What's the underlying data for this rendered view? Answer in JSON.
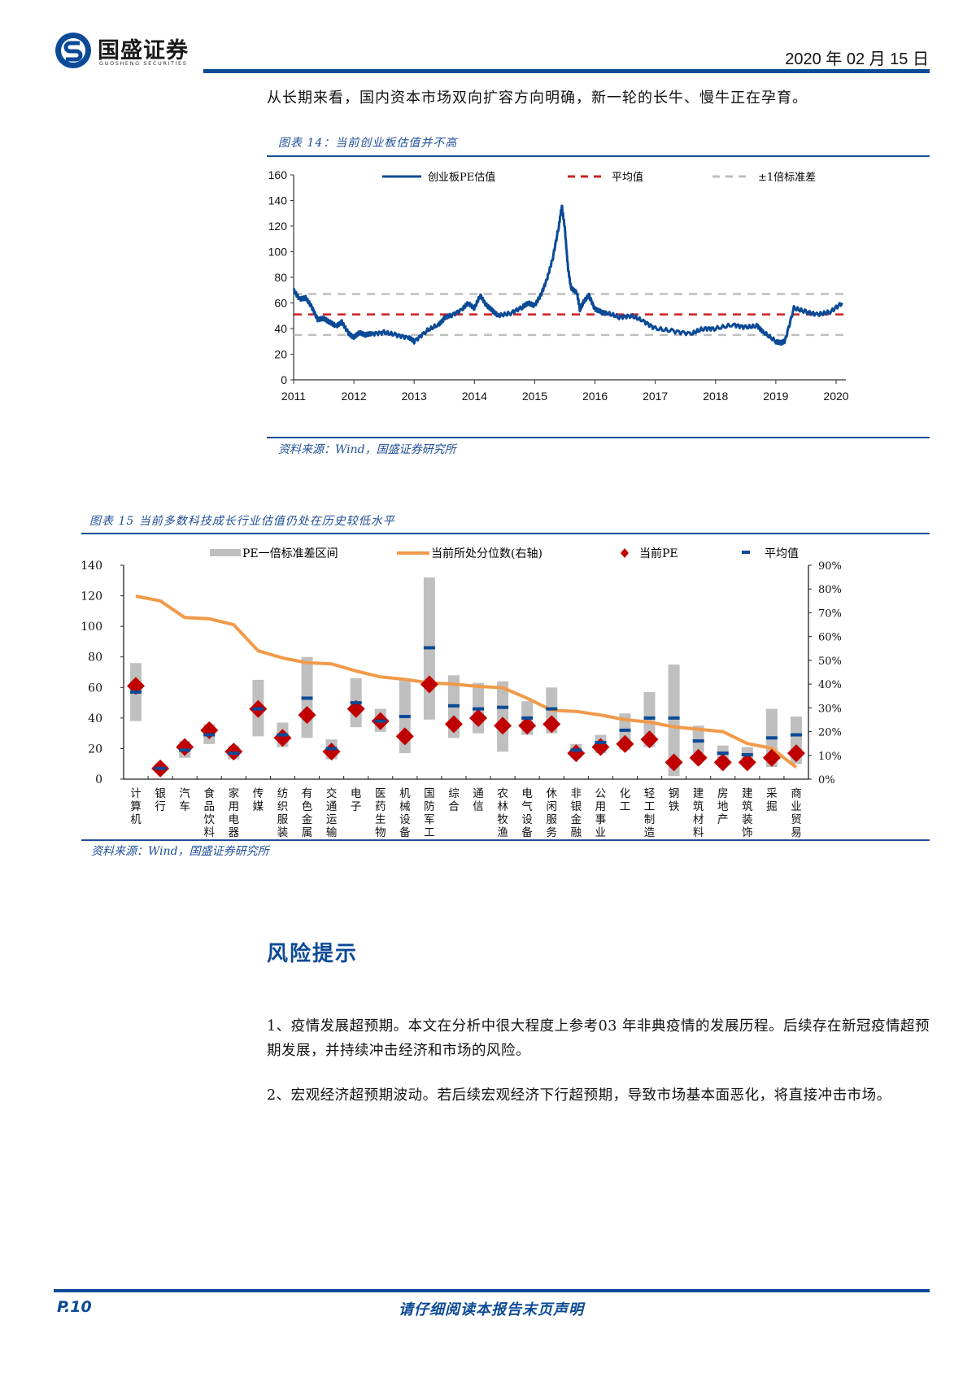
{
  "header": {
    "logo_cn": "国盛证券",
    "logo_en": "GUOSHENG SECURITIES",
    "date": "2020 年 02 月 15 日",
    "brand_color": "#0b4a96"
  },
  "lead_text": "从长期来看，国内资本市场双向扩容方向明确，新一轮的长牛、慢牛正在孕育。",
  "figure14": {
    "title": "图表 14：当前创业板估值并不高",
    "source": "资料来源：Wind，国盛证券研究所"
  },
  "figure15": {
    "title": "图表 15  当前多数科技成长行业估值仍处在历史较低水平",
    "source": "资料来源：Wind，国盛证券研究所"
  },
  "risk": {
    "title": "风险提示",
    "items": [
      "1、疫情发展超预期。本文在分析中很大程度上参考03 年非典疫情的发展历程。后续存在新冠疫情超预期发展，并持续冲击经济和市场的风险。",
      "2、宏观经济超预期波动。若后续宏观经济下行超预期，导致市场基本面恶化，将直接冲击市场。"
    ]
  },
  "footer": {
    "page": "P.10",
    "note": "请仔细阅读本报告末页声明"
  },
  "chart_data": [
    {
      "type": "line",
      "title": "当前创业板估值并不高",
      "xlabel": "",
      "ylabel": "",
      "ylim": [
        0,
        160
      ],
      "yticks": [
        0,
        20,
        40,
        60,
        80,
        100,
        120,
        140,
        160
      ],
      "xticks": [
        "2011",
        "2012",
        "2013",
        "2014",
        "2015",
        "2016",
        "2017",
        "2018",
        "2019",
        "2020"
      ],
      "legend_position": "top",
      "grid": false,
      "series": [
        {
          "name": "创业板PE估值",
          "color": "#0b4a96",
          "x": [
            2011.0,
            2011.1,
            2011.2,
            2011.3,
            2011.4,
            2011.5,
            2011.6,
            2011.7,
            2011.8,
            2011.9,
            2012.0,
            2012.1,
            2012.2,
            2012.3,
            2012.5,
            2012.7,
            2012.9,
            2013.0,
            2013.2,
            2013.4,
            2013.5,
            2013.6,
            2013.8,
            2013.9,
            2014.0,
            2014.1,
            2014.2,
            2014.3,
            2014.4,
            2014.6,
            2014.8,
            2014.9,
            2015.0,
            2015.1,
            2015.2,
            2015.3,
            2015.4,
            2015.45,
            2015.5,
            2015.55,
            2015.6,
            2015.7,
            2015.75,
            2015.8,
            2015.9,
            2016.0,
            2016.1,
            2016.2,
            2016.4,
            2016.6,
            2016.8,
            2017.0,
            2017.3,
            2017.6,
            2017.8,
            2018.0,
            2018.3,
            2018.5,
            2018.7,
            2018.8,
            2019.0,
            2019.1,
            2019.15,
            2019.3,
            2019.5,
            2019.7,
            2019.9,
            2020.1
          ],
          "y": [
            70,
            63,
            64,
            57,
            47,
            48,
            45,
            42,
            45,
            37,
            33,
            37,
            35,
            36,
            37,
            35,
            33,
            30,
            38,
            43,
            48,
            50,
            55,
            60,
            56,
            66,
            58,
            54,
            50,
            52,
            57,
            60,
            58,
            66,
            78,
            95,
            120,
            136,
            118,
            88,
            72,
            68,
            55,
            60,
            66,
            55,
            53,
            52,
            49,
            50,
            46,
            40,
            38,
            36,
            40,
            40,
            43,
            41,
            42,
            37,
            30,
            29,
            30,
            56,
            53,
            51,
            53,
            60
          ]
        },
        {
          "name": "平均值",
          "color": "#cc1f1f",
          "style": "dashed",
          "value": 51
        },
        {
          "name": "±1倍标准差",
          "color": "#bfbfbf",
          "style": "dashed",
          "upper": 67,
          "lower": 35
        }
      ]
    },
    {
      "type": "bar",
      "title": "当前多数科技成长行业估值仍处在历史较低水平",
      "ylim": [
        0,
        140
      ],
      "yticks": [
        0,
        20,
        40,
        60,
        80,
        100,
        120,
        140
      ],
      "y2lim": [
        0,
        90
      ],
      "y2ticks": [
        "0%",
        "10%",
        "20%",
        "30%",
        "40%",
        "50%",
        "60%",
        "70%",
        "80%",
        "90%"
      ],
      "legend_position": "top",
      "grid": false,
      "categories": [
        "计算机",
        "银行",
        "汽车",
        "食品饮料",
        "家用电器",
        "传媒",
        "纺织服装",
        "有色金属",
        "交通运输",
        "电子",
        "医药生物",
        "机械设备",
        "国防军工",
        "综合",
        "通信",
        "农林牧渔",
        "电气设备",
        "休闲服务",
        "非银金融",
        "公用事业",
        "化工",
        "轻工制造",
        "钢铁",
        "建筑材料",
        "房地产",
        "建筑装饰",
        "采掘",
        "商业贸易"
      ],
      "series": [
        {
          "name": "PE一倍标准差区间",
          "type": "range-bar",
          "color": "#bfbfbf",
          "low": [
            38,
            5,
            14,
            23,
            13,
            28,
            21,
            27,
            13,
            34,
            31,
            17,
            39,
            27,
            30,
            18,
            29,
            30,
            14,
            17,
            19,
            21,
            2,
            17,
            12,
            12,
            8,
            10
          ],
          "high": [
            76,
            10,
            25,
            36,
            22,
            65,
            37,
            80,
            26,
            66,
            46,
            65,
            132,
            68,
            63,
            64,
            51,
            60,
            23,
            29,
            43,
            57,
            75,
            35,
            22,
            21,
            46,
            41
          ]
        },
        {
          "name": "当前所处分位数(右轴)",
          "type": "line",
          "axis": "right",
          "color": "#f19a4a",
          "values": [
            77,
            75,
            68,
            67.5,
            65,
            54,
            51,
            49,
            48.5,
            45.5,
            43,
            42,
            40.5,
            40,
            39,
            38.5,
            34,
            29,
            28.5,
            27,
            25,
            24,
            22,
            21,
            20,
            15,
            13,
            5
          ]
        },
        {
          "name": "当前PE",
          "type": "scatter",
          "marker": "diamond",
          "color": "#c00000",
          "values": [
            61,
            7,
            21,
            32,
            18,
            46,
            27,
            42,
            18,
            46,
            38,
            28,
            62,
            36,
            40,
            35,
            35,
            36,
            17,
            21,
            23,
            26,
            11,
            14,
            11,
            11,
            14,
            17
          ]
        },
        {
          "name": "平均值",
          "type": "marker",
          "marker": "dash",
          "color": "#0b4a96",
          "values": [
            57,
            7,
            19,
            29,
            17,
            46,
            29,
            53,
            20,
            50,
            38,
            41,
            86,
            48,
            46,
            47,
            40,
            46,
            19,
            24,
            32,
            40,
            40,
            25,
            17,
            16,
            27,
            29
          ]
        }
      ]
    }
  ]
}
